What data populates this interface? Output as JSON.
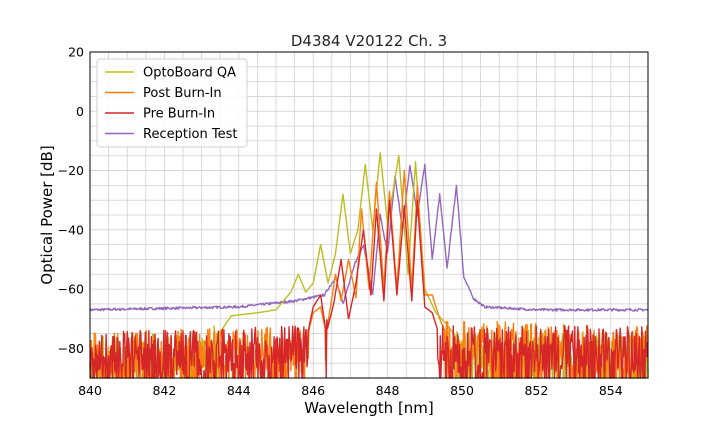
{
  "chart_data": {
    "type": "line",
    "title": "D4384 V20122 Ch. 3",
    "xlabel": "Wavelength [nm]",
    "ylabel": "Optical Power [dB]",
    "xlim": [
      840,
      855
    ],
    "ylim": [
      -90,
      20
    ],
    "x_ticks": [
      "840",
      "842",
      "844",
      "846",
      "848",
      "850",
      "852",
      "854"
    ],
    "y_ticks": [
      "20",
      "0",
      "−20",
      "−40",
      "−60",
      "−80"
    ],
    "x_tick_values": [
      840,
      842,
      844,
      846,
      848,
      850,
      852,
      854
    ],
    "y_tick_values": [
      20,
      0,
      -20,
      -40,
      -60,
      -80
    ],
    "grid": true,
    "legend_position": "top-left",
    "series": [
      {
        "name": "OptoBoard QA",
        "color": "#bcbd22",
        "noise_floor": -80,
        "points": [
          [
            840,
            -81
          ],
          [
            843.2,
            -80
          ],
          [
            843.8,
            -69
          ],
          [
            844.5,
            -68
          ],
          [
            845,
            -67
          ],
          [
            845.4,
            -61
          ],
          [
            845.6,
            -55
          ],
          [
            845.8,
            -61
          ],
          [
            846.0,
            -58
          ],
          [
            846.2,
            -45
          ],
          [
            846.4,
            -58
          ],
          [
            846.6,
            -48
          ],
          [
            846.8,
            -28
          ],
          [
            847.0,
            -48
          ],
          [
            847.2,
            -40
          ],
          [
            847.4,
            -18
          ],
          [
            847.6,
            -40
          ],
          [
            847.8,
            -14
          ],
          [
            848.0,
            -38
          ],
          [
            848.3,
            -15
          ],
          [
            848.55,
            -55
          ],
          [
            848.75,
            -17
          ],
          [
            849.0,
            -60
          ],
          [
            849.3,
            -68
          ],
          [
            849.6,
            -72
          ],
          [
            850.0,
            -79
          ],
          [
            855,
            -80
          ]
        ]
      },
      {
        "name": "Post Burn-In",
        "color": "#ff7f0e",
        "noise_floor": -78,
        "points": [
          [
            840,
            -80
          ],
          [
            845.8,
            -78
          ],
          [
            846.0,
            -68
          ],
          [
            846.2,
            -66
          ],
          [
            846.35,
            -75
          ],
          [
            846.6,
            -55
          ],
          [
            846.75,
            -64
          ],
          [
            846.95,
            -50
          ],
          [
            847.15,
            -63
          ],
          [
            847.3,
            -33
          ],
          [
            847.5,
            -60
          ],
          [
            847.7,
            -24
          ],
          [
            847.9,
            -60
          ],
          [
            848.05,
            -27
          ],
          [
            848.25,
            -60
          ],
          [
            848.45,
            -20
          ],
          [
            848.65,
            -60
          ],
          [
            848.8,
            -25
          ],
          [
            849.0,
            -62
          ],
          [
            849.2,
            -62
          ],
          [
            849.4,
            -70
          ],
          [
            849.6,
            -76
          ],
          [
            855,
            -78
          ]
        ]
      },
      {
        "name": "Pre Burn-In",
        "color": "#d62728",
        "noise_floor": -78,
        "points": [
          [
            840,
            -80
          ],
          [
            845.8,
            -78
          ],
          [
            846.0,
            -66
          ],
          [
            846.2,
            -62
          ],
          [
            846.35,
            -75
          ],
          [
            846.55,
            -65
          ],
          [
            846.75,
            -50
          ],
          [
            846.95,
            -70
          ],
          [
            847.15,
            -58
          ],
          [
            847.35,
            -40
          ],
          [
            847.55,
            -62
          ],
          [
            847.7,
            -33
          ],
          [
            847.9,
            -64
          ],
          [
            848.05,
            -30
          ],
          [
            848.25,
            -62
          ],
          [
            848.45,
            -32
          ],
          [
            848.65,
            -64
          ],
          [
            848.8,
            -30
          ],
          [
            849.0,
            -66
          ],
          [
            849.2,
            -68
          ],
          [
            849.4,
            -76
          ],
          [
            849.6,
            -78
          ],
          [
            855,
            -78
          ]
        ]
      },
      {
        "name": "Reception Test",
        "color": "#9467bd",
        "points": [
          [
            840,
            -67
          ],
          [
            844,
            -66
          ],
          [
            845.5,
            -64
          ],
          [
            846.3,
            -62
          ],
          [
            846.6,
            -56
          ],
          [
            846.8,
            -65
          ],
          [
            847.1,
            -52
          ],
          [
            847.35,
            -45
          ],
          [
            847.6,
            -62
          ],
          [
            847.8,
            -35
          ],
          [
            848.0,
            -48
          ],
          [
            848.2,
            -22
          ],
          [
            848.4,
            -40
          ],
          [
            848.6,
            -18
          ],
          [
            848.8,
            -35
          ],
          [
            849.0,
            -18
          ],
          [
            849.2,
            -50
          ],
          [
            849.4,
            -28
          ],
          [
            849.6,
            -53
          ],
          [
            849.85,
            -25
          ],
          [
            850.05,
            -56
          ],
          [
            850.3,
            -63
          ],
          [
            850.6,
            -66
          ],
          [
            852,
            -67
          ],
          [
            855,
            -67
          ]
        ]
      }
    ]
  }
}
